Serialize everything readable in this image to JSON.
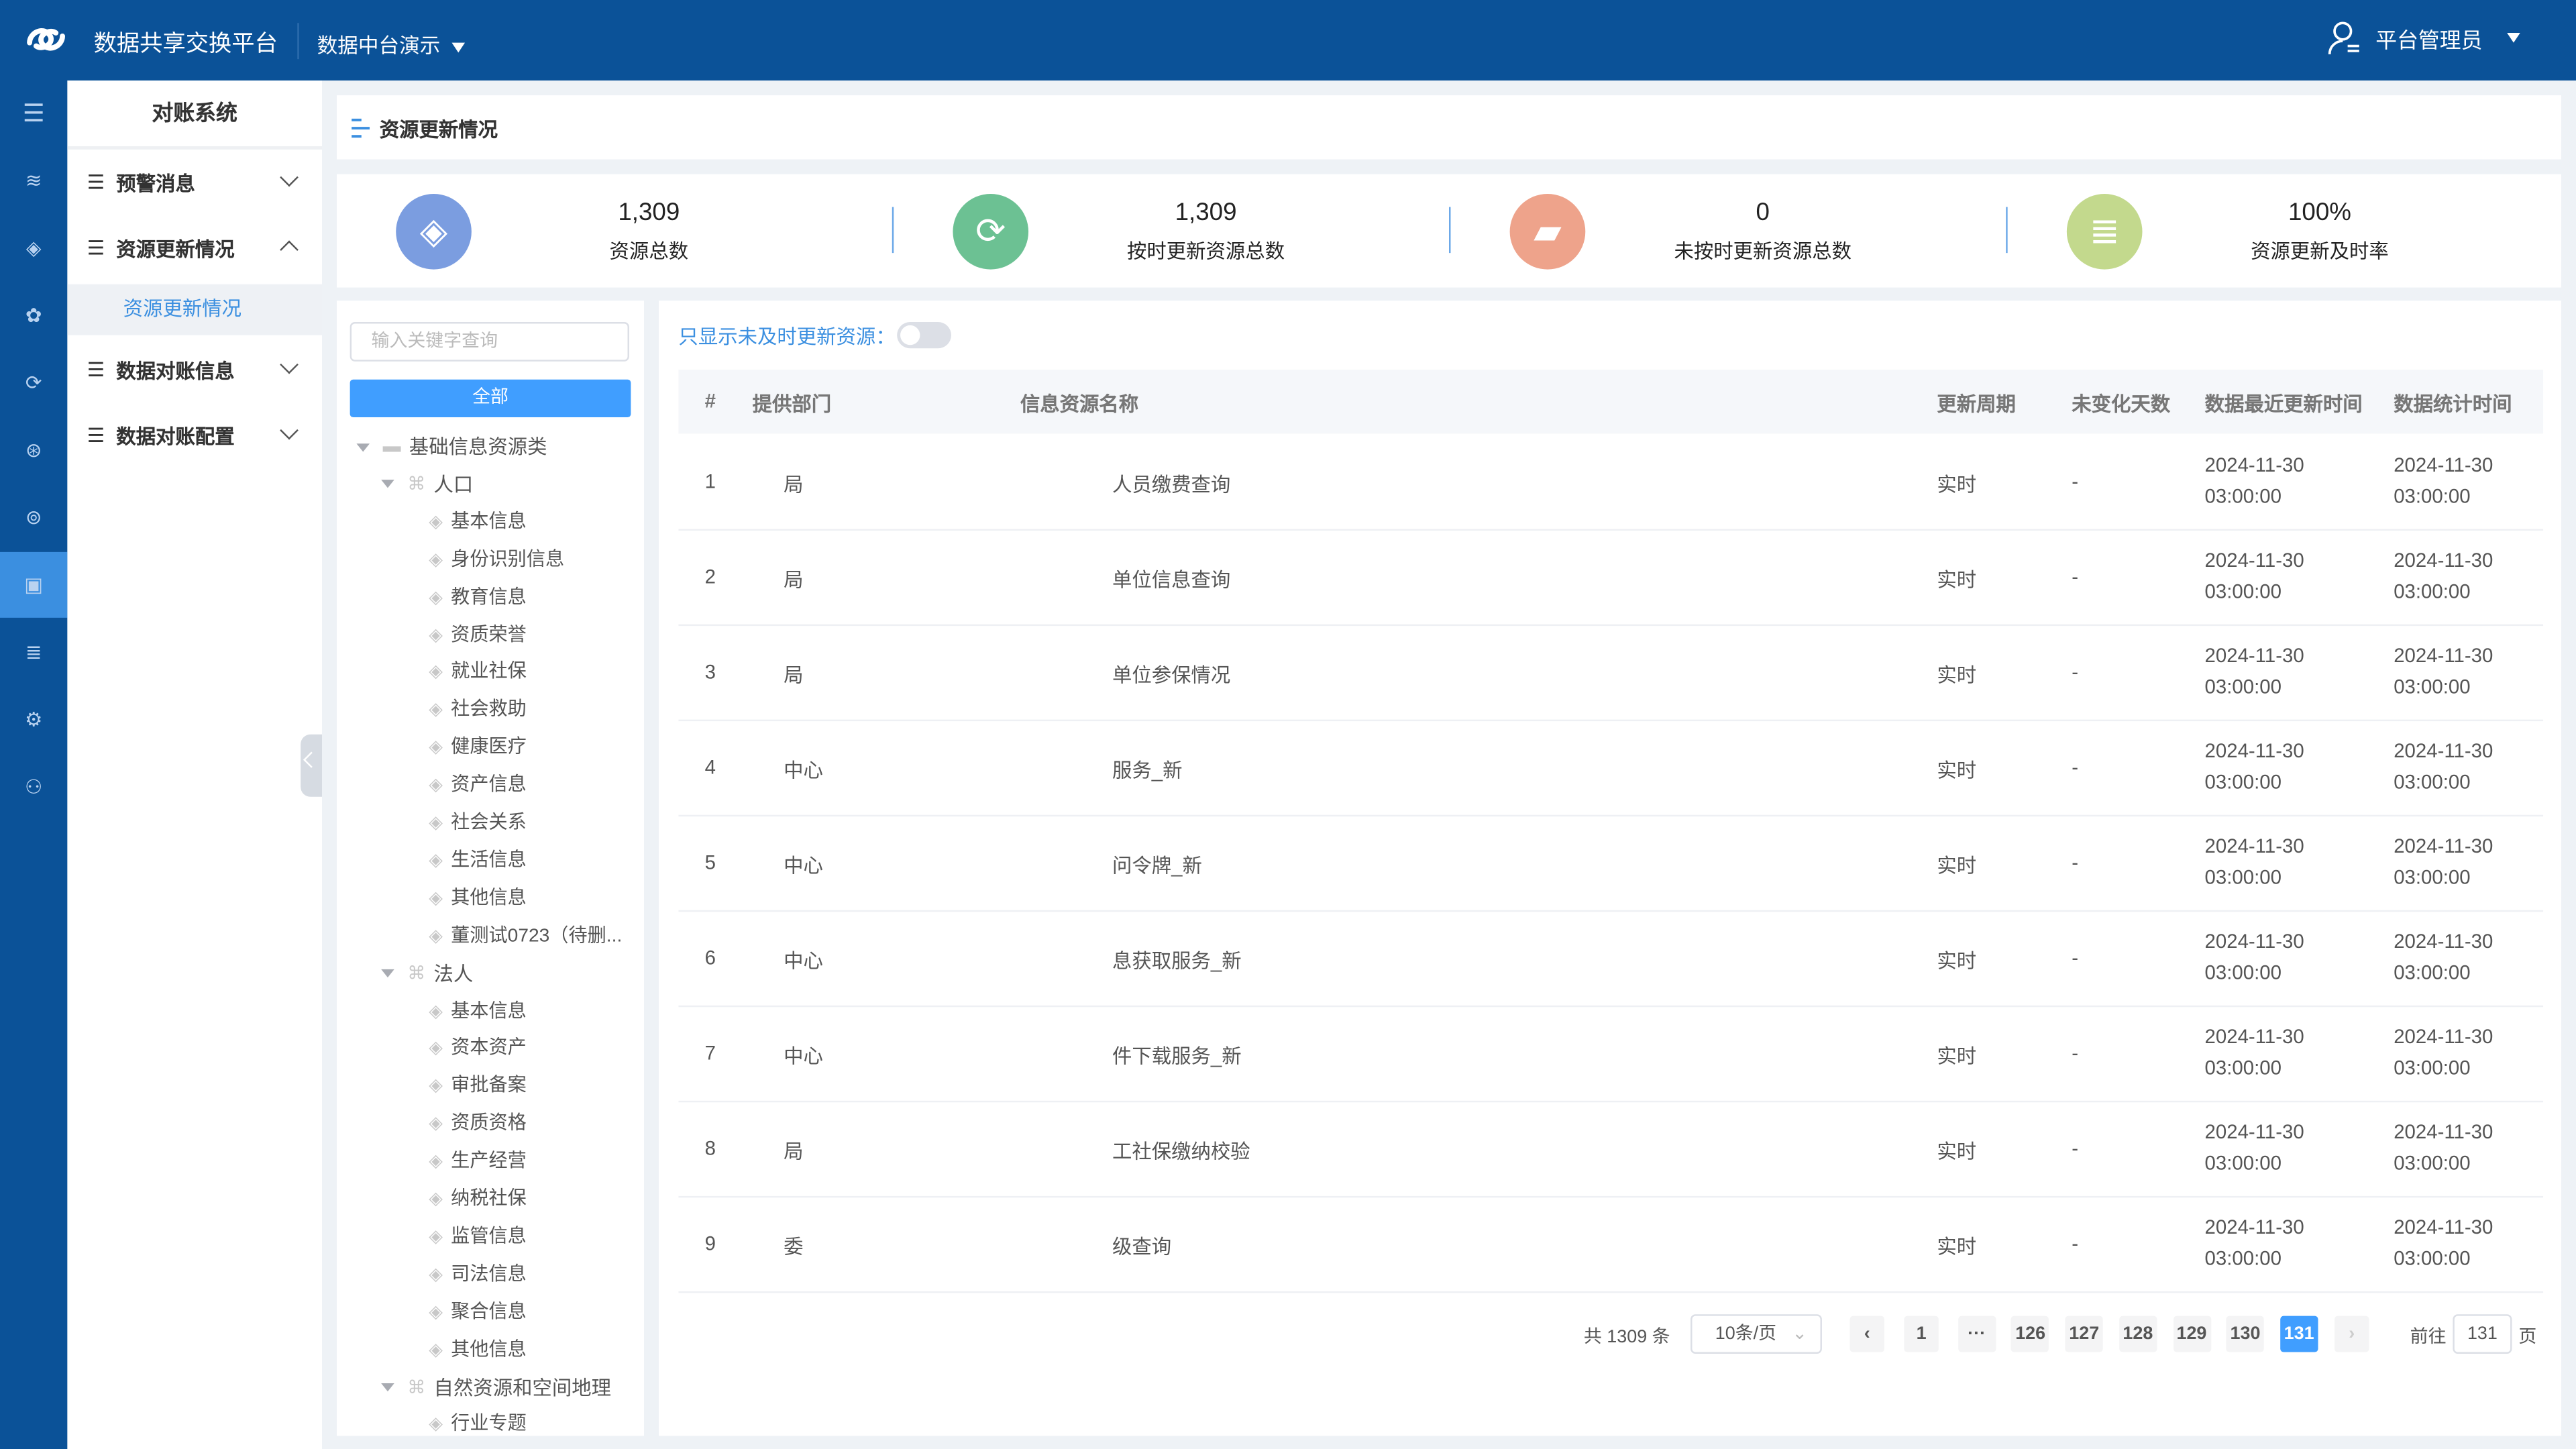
{
  "header": {
    "app_title": "数据共享交换平台",
    "tenant": "数据中台演示",
    "user": "平台管理员"
  },
  "rail": {
    "icons": [
      "menu-toggle-icon",
      "database-icon",
      "layers-icon",
      "cluster-icon",
      "sync-icon",
      "share-icon",
      "network-icon",
      "monitor-icon",
      "storage-icon",
      "settings-icon",
      "user-icon"
    ],
    "active_index": 7
  },
  "menu": {
    "title": "对账系统",
    "items": [
      {
        "label": "预警消息"
      },
      {
        "label": "资源更新情况",
        "sub": "资源更新情况"
      },
      {
        "label": "数据对账信息"
      },
      {
        "label": "数据对账配置"
      }
    ]
  },
  "breadcrumb": {
    "title": "资源更新情况"
  },
  "stats": [
    {
      "value": "1,309",
      "label": "资源总数",
      "color": "#7b9de0",
      "icon": "layers-icon"
    },
    {
      "value": "1,309",
      "label": "按时更新资源总数",
      "color": "#6cc193",
      "icon": "refresh-icon"
    },
    {
      "value": "0",
      "label": "未按时更新资源总数",
      "color": "#eea38b",
      "icon": "folder-icon"
    },
    {
      "value": "100%",
      "label": "资源更新及时率",
      "color": "#c3d98d",
      "icon": "database-icon"
    }
  ],
  "tree": {
    "search_placeholder": "输入关键字查询",
    "all_button": "全部",
    "nodes": [
      {
        "label": "基础信息资源类",
        "level": 0,
        "type": "folder"
      },
      {
        "label": "人口",
        "level": 1,
        "type": "group"
      },
      {
        "label": "基本信息",
        "level": 2
      },
      {
        "label": "身份识别信息",
        "level": 2
      },
      {
        "label": "教育信息",
        "level": 2
      },
      {
        "label": "资质荣誉",
        "level": 2
      },
      {
        "label": "就业社保",
        "level": 2
      },
      {
        "label": "社会救助",
        "level": 2
      },
      {
        "label": "健康医疗",
        "level": 2
      },
      {
        "label": "资产信息",
        "level": 2
      },
      {
        "label": "社会关系",
        "level": 2
      },
      {
        "label": "生活信息",
        "level": 2
      },
      {
        "label": "其他信息",
        "level": 2
      },
      {
        "label": "董测试0723（待删...",
        "level": 2
      },
      {
        "label": "法人",
        "level": 1,
        "type": "group"
      },
      {
        "label": "基本信息",
        "level": 2
      },
      {
        "label": "资本资产",
        "level": 2
      },
      {
        "label": "审批备案",
        "level": 2
      },
      {
        "label": "资质资格",
        "level": 2
      },
      {
        "label": "生产经营",
        "level": 2
      },
      {
        "label": "纳税社保",
        "level": 2
      },
      {
        "label": "监管信息",
        "level": 2
      },
      {
        "label": "司法信息",
        "level": 2
      },
      {
        "label": "聚合信息",
        "level": 2
      },
      {
        "label": "其他信息",
        "level": 2
      },
      {
        "label": "自然资源和空间地理",
        "level": 1,
        "type": "group"
      },
      {
        "label": "行业专题",
        "level": 2
      }
    ]
  },
  "table": {
    "toggle_label": "只显示未及时更新资源：",
    "toggle_on": false,
    "columns": [
      "#",
      "提供部门",
      "信息资源名称",
      "更新周期",
      "未变化天数",
      "数据最近更新时间",
      "数据统计时间"
    ],
    "rows": [
      {
        "no": "1",
        "dept": "局",
        "name": "人员缴费查询",
        "period": "实时",
        "days": "-",
        "latest_date": "2024-11-30",
        "latest_time": "03:00:00",
        "stat_date": "2024-11-30",
        "stat_time": "03:00:00"
      },
      {
        "no": "2",
        "dept": "局",
        "name": "单位信息查询",
        "period": "实时",
        "days": "-",
        "latest_date": "2024-11-30",
        "latest_time": "03:00:00",
        "stat_date": "2024-11-30",
        "stat_time": "03:00:00"
      },
      {
        "no": "3",
        "dept": "局",
        "name": "单位参保情况",
        "period": "实时",
        "days": "-",
        "latest_date": "2024-11-30",
        "latest_time": "03:00:00",
        "stat_date": "2024-11-30",
        "stat_time": "03:00:00"
      },
      {
        "no": "4",
        "dept": "中心",
        "name": "服务_新",
        "period": "实时",
        "days": "-",
        "latest_date": "2024-11-30",
        "latest_time": "03:00:00",
        "stat_date": "2024-11-30",
        "stat_time": "03:00:00"
      },
      {
        "no": "5",
        "dept": "中心",
        "name": "问令牌_新",
        "period": "实时",
        "days": "-",
        "latest_date": "2024-11-30",
        "latest_time": "03:00:00",
        "stat_date": "2024-11-30",
        "stat_time": "03:00:00"
      },
      {
        "no": "6",
        "dept": "中心",
        "name": "息获取服务_新",
        "period": "实时",
        "days": "-",
        "latest_date": "2024-11-30",
        "latest_time": "03:00:00",
        "stat_date": "2024-11-30",
        "stat_time": "03:00:00"
      },
      {
        "no": "7",
        "dept": "中心",
        "name": "件下载服务_新",
        "period": "实时",
        "days": "-",
        "latest_date": "2024-11-30",
        "latest_time": "03:00:00",
        "stat_date": "2024-11-30",
        "stat_time": "03:00:00"
      },
      {
        "no": "8",
        "dept": "局",
        "name": "工社保缴纳校验",
        "period": "实时",
        "days": "-",
        "latest_date": "2024-11-30",
        "latest_time": "03:00:00",
        "stat_date": "2024-11-30",
        "stat_time": "03:00:00"
      },
      {
        "no": "9",
        "dept": "委",
        "name": "级查询",
        "period": "实时",
        "days": "-",
        "latest_date": "2024-11-30",
        "latest_time": "03:00:00",
        "stat_date": "2024-11-30",
        "stat_time": "03:00:00"
      }
    ]
  },
  "pagination": {
    "total": "共 1309 条",
    "page_size": "10条/页",
    "pages": [
      "1",
      "···",
      "126",
      "127",
      "128",
      "129",
      "130",
      "131"
    ],
    "current": "131",
    "goto_prefix": "前往",
    "goto_value": "131",
    "goto_suffix": "页"
  }
}
